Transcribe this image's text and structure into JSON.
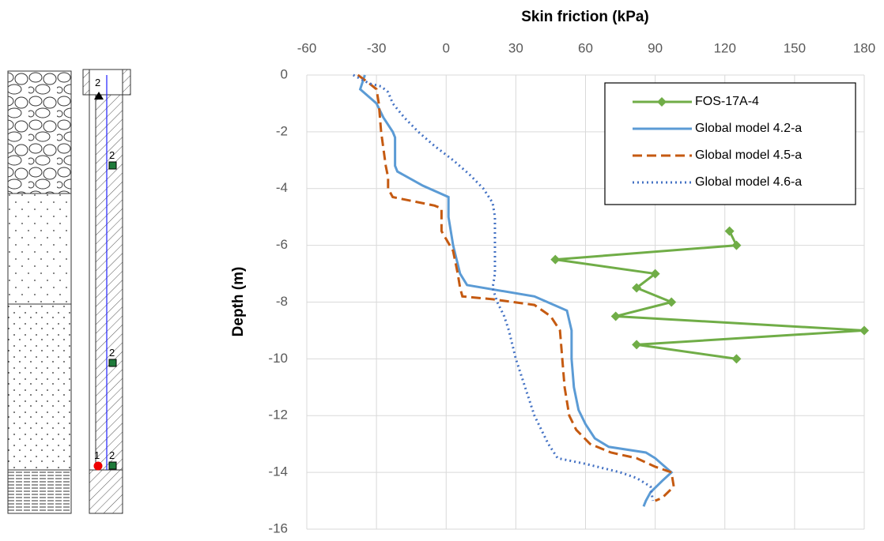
{
  "chart_data": {
    "type": "line",
    "x_label": "Skin friction (kPa)",
    "y_label": "Depth (m)",
    "xlim": [
      -60,
      180
    ],
    "xticks": [
      -60,
      -30,
      0,
      30,
      60,
      90,
      120,
      150,
      180
    ],
    "ylim": [
      -16,
      0
    ],
    "yticks": [
      0,
      -2,
      -4,
      -6,
      -8,
      -10,
      -12,
      -14,
      -16
    ],
    "grid": true,
    "legend": "upper right",
    "series": [
      {
        "name": "FOS-17A-4",
        "color": "#70ad47",
        "line_style": "solid",
        "marker": "diamond",
        "x": [
          122,
          125,
          47,
          90,
          82,
          97,
          73,
          180,
          82,
          125
        ],
        "y": [
          -5.5,
          -6,
          -6.5,
          -7,
          -7.5,
          -8,
          -8.5,
          -9,
          -9.5,
          -10
        ]
      },
      {
        "name": "Global model 4.2-a",
        "color": "#5b9bd5",
        "line_style": "solid",
        "x": [
          -35,
          -37,
          -30,
          -27,
          -23,
          -22,
          -22,
          -21,
          -10,
          1,
          1,
          3,
          6,
          9,
          38,
          52,
          54,
          54,
          55,
          57,
          60,
          64,
          70,
          86,
          90,
          97,
          93,
          88,
          86,
          85
        ],
        "y": [
          0,
          -0.5,
          -1,
          -1.5,
          -2,
          -2.2,
          -3.2,
          -3.4,
          -3.9,
          -4.3,
          -5,
          -6,
          -7,
          -7.4,
          -7.8,
          -8.3,
          -9,
          -10,
          -11,
          -11.8,
          -12.3,
          -12.8,
          -13.1,
          -13.3,
          -13.5,
          -14,
          -14.3,
          -14.7,
          -15,
          -15.2
        ]
      },
      {
        "name": "Global model 4.5-a",
        "color": "#c55a11",
        "line_style": "dashed",
        "x": [
          -38,
          -33,
          -30,
          -29,
          -28,
          -26,
          -25,
          -25,
          -23,
          -5,
          -2,
          -2,
          3,
          5,
          6,
          7,
          20,
          38,
          45,
          49,
          50,
          51,
          53,
          56,
          62,
          71,
          82,
          90,
          97,
          98,
          93,
          90
        ],
        "y": [
          0,
          -0.3,
          -0.5,
          -1,
          -2,
          -3.2,
          -3.6,
          -4,
          -4.3,
          -4.6,
          -4.7,
          -5.5,
          -6.2,
          -7,
          -7.5,
          -7.8,
          -7.9,
          -8.1,
          -8.5,
          -9,
          -10,
          -11,
          -12,
          -12.5,
          -13,
          -13.3,
          -13.5,
          -13.8,
          -14,
          -14.5,
          -14.9,
          -15
        ]
      },
      {
        "name": "Global model 4.6-a",
        "color": "#4472c4",
        "line_style": "dotted",
        "x": [
          -40,
          -33,
          -28,
          -25,
          -23,
          -18,
          -12,
          -5,
          3,
          10,
          16,
          20,
          21,
          21,
          21,
          20,
          22,
          25,
          27,
          30,
          34,
          38,
          41,
          44,
          48,
          60,
          75,
          82,
          88,
          89
        ],
        "y": [
          0,
          -0.3,
          -0.4,
          -0.6,
          -1,
          -1.5,
          -2,
          -2.5,
          -3,
          -3.5,
          -4,
          -4.5,
          -5,
          -6,
          -7,
          -7.5,
          -8,
          -8.5,
          -9,
          -10,
          -11,
          -12,
          -12.5,
          -13,
          -13.5,
          -13.7,
          -14,
          -14.2,
          -14.5,
          -15
        ]
      }
    ]
  },
  "borehole": {
    "sensor_labels": [
      "2",
      "2",
      "2",
      "1",
      "2"
    ]
  }
}
